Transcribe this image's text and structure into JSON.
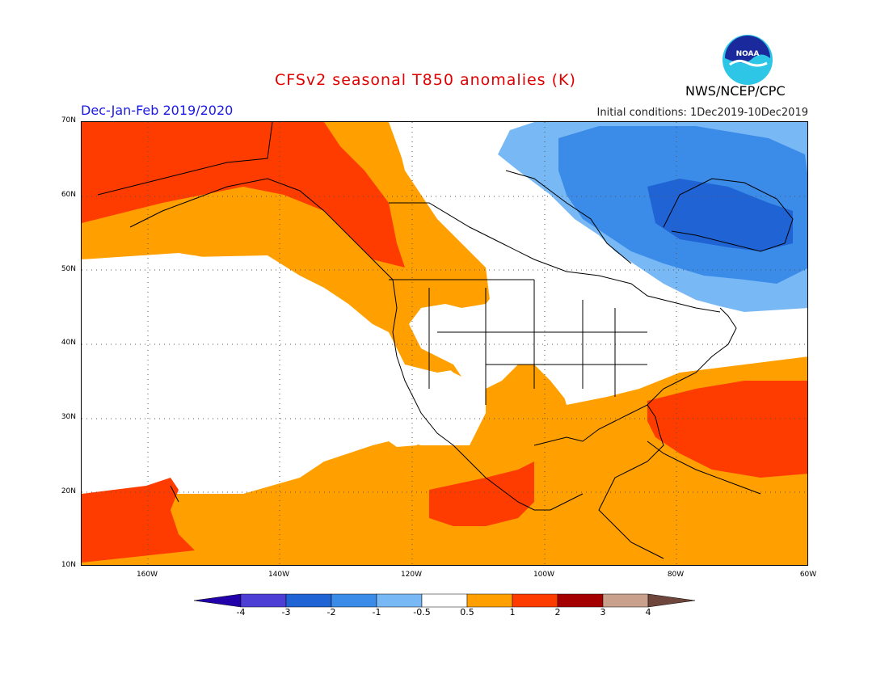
{
  "header": {
    "title": "CFSv2 seasonal T850 anomalies (K)",
    "season": "Dec-Jan-Feb 2019/2020",
    "initial_conditions": "Initial conditions: 1Dec2019-10Dec2019",
    "agency": "NWS/NCEP/CPC",
    "logo_text": "NOAA"
  },
  "map": {
    "projection": "lat-lon",
    "lon_range": [
      "170W",
      "60W"
    ],
    "lat_range": [
      "10N",
      "70N"
    ],
    "lat_labels": [
      "70N",
      "60N",
      "50N",
      "40N",
      "30N",
      "20N",
      "10N"
    ],
    "lon_labels": [
      "160W",
      "140W",
      "120W",
      "100W",
      "80W",
      "60W"
    ],
    "features": "North America coastlines and US state boundaries",
    "anomaly_regions": [
      {
        "region": "Alaska / NE Pacific",
        "category": "1 to 2"
      },
      {
        "region": "Western Canada / Pacific NW",
        "category": "0.5 to 1"
      },
      {
        "region": "Northern Rockies / Plains",
        "category": "0.5 to 1"
      },
      {
        "region": "Hudson Bay / Labrador",
        "category": "-2 to -1"
      },
      {
        "region": "Eastern Canada",
        "category": "-1 to -0.5"
      },
      {
        "region": "Southeast US / Bahamas / Western Atlantic",
        "category": "1 to 2"
      },
      {
        "region": "Gulf of Mexico / Central America",
        "category": "0.5 to 1"
      },
      {
        "region": "Western Mexico",
        "category": "1 to 2"
      },
      {
        "region": "Hawaii region",
        "category": "1 to 2"
      },
      {
        "region": "Subtropical Pacific",
        "category": "0.5 to 1"
      }
    ]
  },
  "colorbar": {
    "labels": [
      "-4",
      "-3",
      "-2",
      "-1",
      "-0.5",
      "0.5",
      "1",
      "2",
      "3",
      "4"
    ],
    "colors": [
      "#2200aa",
      "#4d3fd6",
      "#1f63d4",
      "#3b8be8",
      "#78b9f5",
      "#ffffff",
      "#ffa000",
      "#ff3c00",
      "#a50000",
      "#c8a08c",
      "#6e463c"
    ]
  }
}
